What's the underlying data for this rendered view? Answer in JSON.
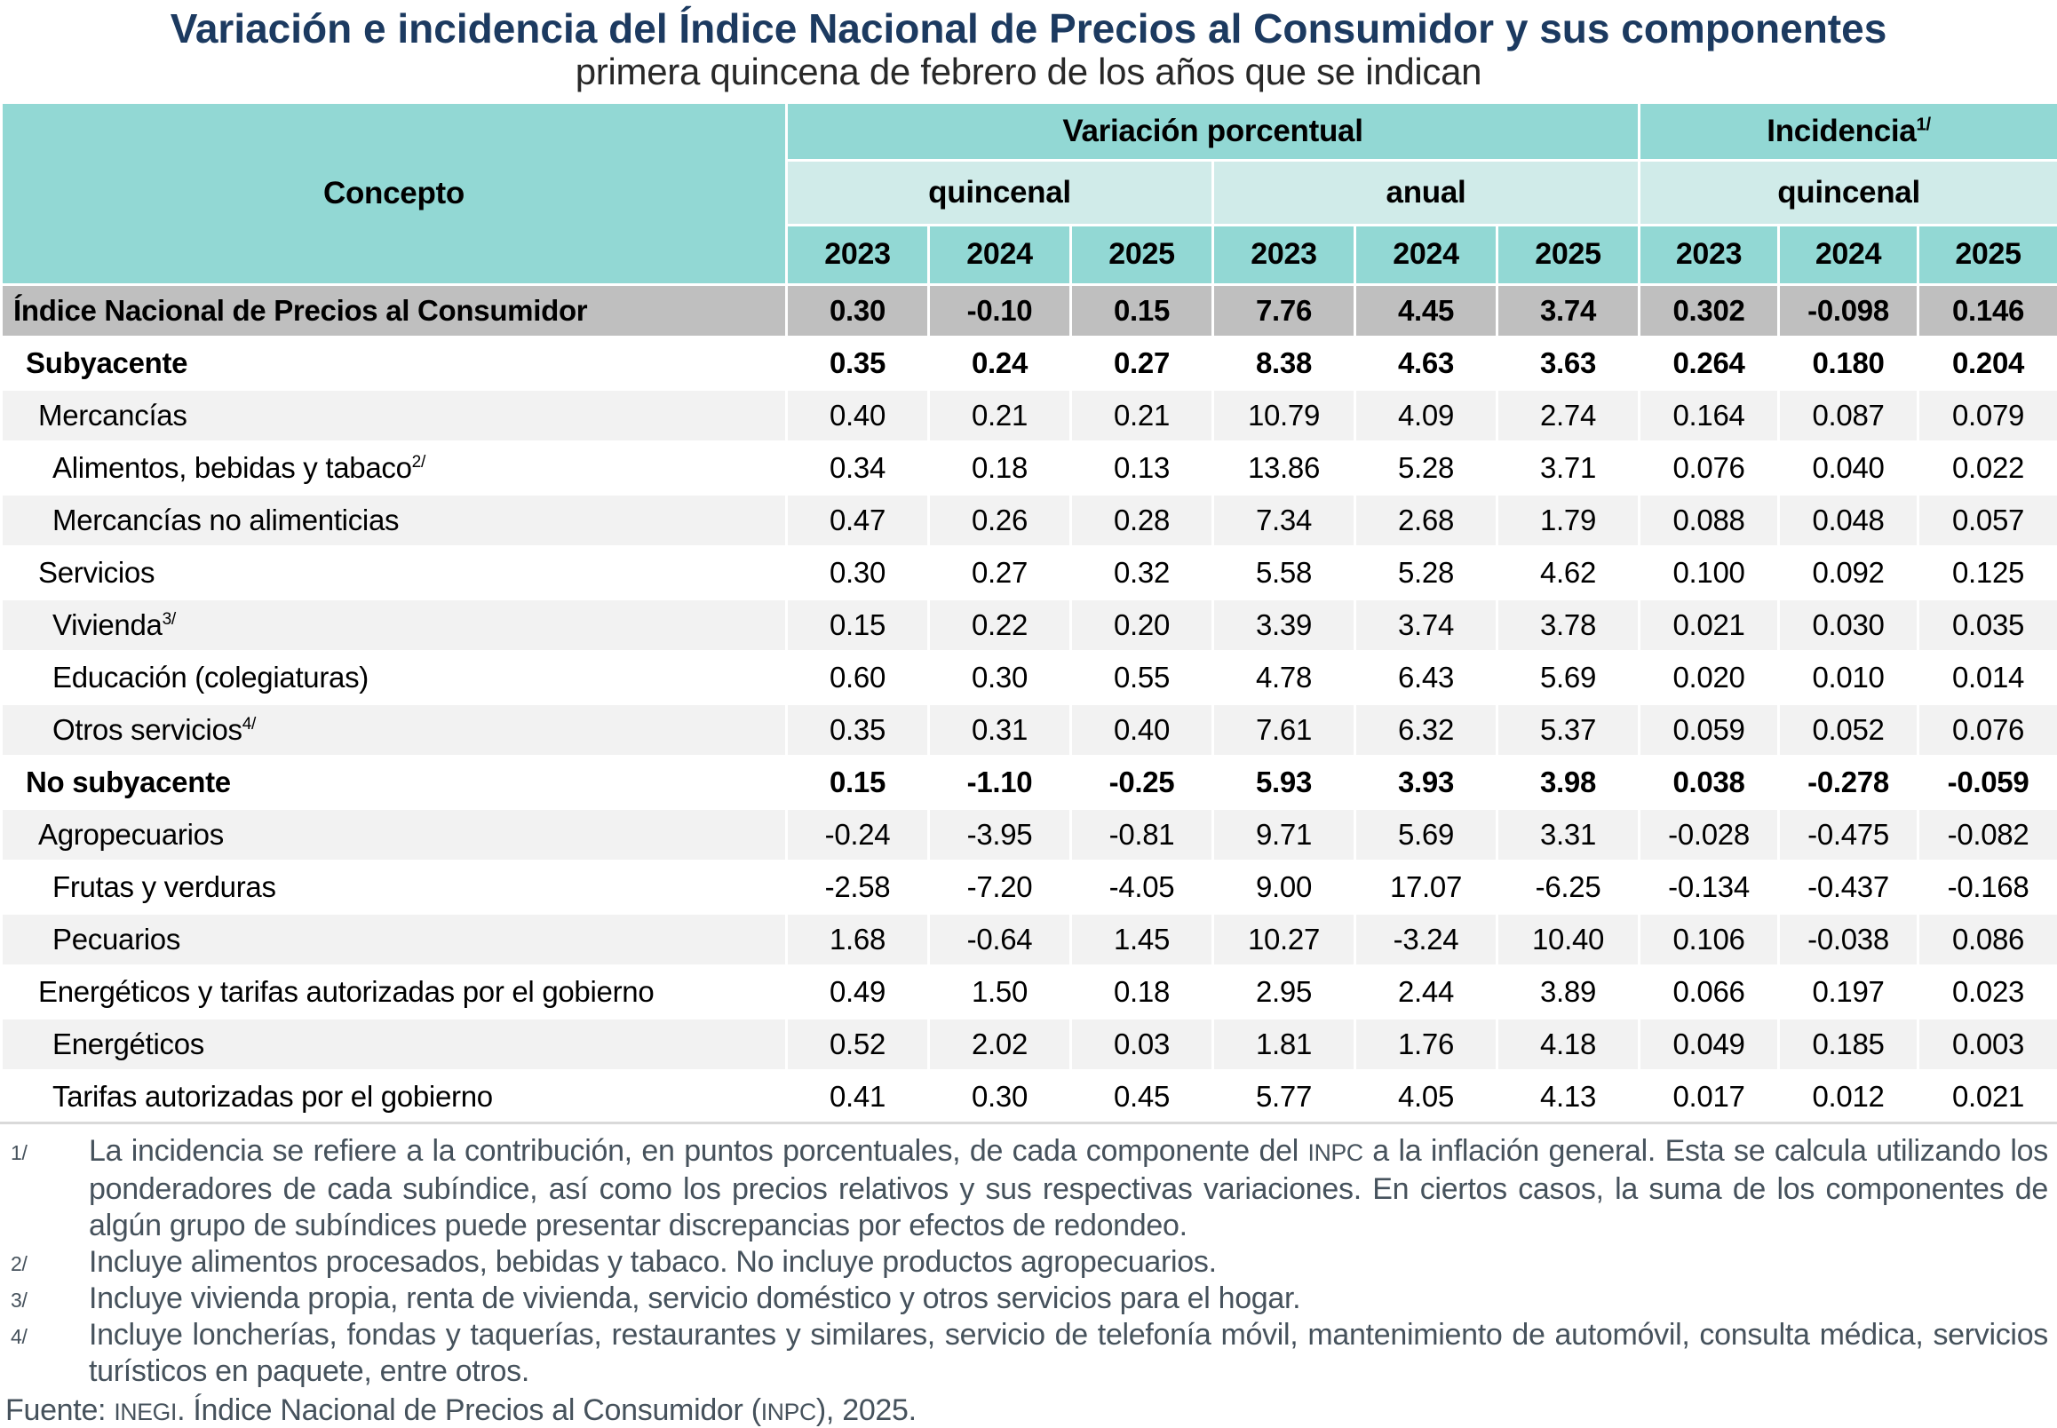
{
  "title": "Variación e incidencia del Índice Nacional de Precios al Consumidor y sus componentes",
  "subtitle": "primera quincena de febrero de los años que se indican",
  "colors": {
    "header_teal": "#92D8D4",
    "subheader_teal_light": "#D0EBE9",
    "inpc_row_gray": "#BFBFBF",
    "alt_row_gray": "#F2F2F2",
    "title_navy": "#1C3A60",
    "footnote_slate": "#46525C"
  },
  "table": {
    "concepto_label": "Concepto",
    "col_groups": [
      {
        "label": "Variación porcentual",
        "sup": ""
      },
      {
        "label": "Incidencia",
        "sup": "1/"
      }
    ],
    "sub_groups": [
      "quincenal",
      "anual",
      "quincenal"
    ],
    "years": [
      "2023",
      "2024",
      "2025",
      "2023",
      "2024",
      "2025",
      "2023",
      "2024",
      "2025"
    ],
    "rows": [
      {
        "label": "Índice Nacional de Precios al Consumidor",
        "sup": "",
        "indent": 0,
        "bold": true,
        "bg": "gray",
        "values": [
          "0.30",
          "-0.10",
          "0.15",
          "7.76",
          "4.45",
          "3.74",
          "0.302",
          "-0.098",
          "0.146"
        ]
      },
      {
        "label": "Subyacente",
        "sup": "",
        "indent": 1,
        "bold": true,
        "bg": "white",
        "values": [
          "0.35",
          "0.24",
          "0.27",
          "8.38",
          "4.63",
          "3.63",
          "0.264",
          "0.180",
          "0.204"
        ]
      },
      {
        "label": "Mercancías",
        "sup": "",
        "indent": 2,
        "bold": false,
        "bg": "alt",
        "values": [
          "0.40",
          "0.21",
          "0.21",
          "10.79",
          "4.09",
          "2.74",
          "0.164",
          "0.087",
          "0.079"
        ]
      },
      {
        "label": "Alimentos, bebidas y tabaco",
        "sup": "2/",
        "indent": 3,
        "bold": false,
        "bg": "white",
        "values": [
          "0.34",
          "0.18",
          "0.13",
          "13.86",
          "5.28",
          "3.71",
          "0.076",
          "0.040",
          "0.022"
        ]
      },
      {
        "label": "Mercancías no alimenticias",
        "sup": "",
        "indent": 3,
        "bold": false,
        "bg": "alt",
        "values": [
          "0.47",
          "0.26",
          "0.28",
          "7.34",
          "2.68",
          "1.79",
          "0.088",
          "0.048",
          "0.057"
        ]
      },
      {
        "label": "Servicios",
        "sup": "",
        "indent": 2,
        "bold": false,
        "bg": "white",
        "values": [
          "0.30",
          "0.27",
          "0.32",
          "5.58",
          "5.28",
          "4.62",
          "0.100",
          "0.092",
          "0.125"
        ]
      },
      {
        "label": "Vivienda",
        "sup": "3/",
        "indent": 3,
        "bold": false,
        "bg": "alt",
        "values": [
          "0.15",
          "0.22",
          "0.20",
          "3.39",
          "3.74",
          "3.78",
          "0.021",
          "0.030",
          "0.035"
        ]
      },
      {
        "label": "Educación (colegiaturas)",
        "sup": "",
        "indent": 3,
        "bold": false,
        "bg": "white",
        "values": [
          "0.60",
          "0.30",
          "0.55",
          "4.78",
          "6.43",
          "5.69",
          "0.020",
          "0.010",
          "0.014"
        ]
      },
      {
        "label": "Otros servicios",
        "sup": "4/",
        "indent": 3,
        "bold": false,
        "bg": "alt",
        "values": [
          "0.35",
          "0.31",
          "0.40",
          "7.61",
          "6.32",
          "5.37",
          "0.059",
          "0.052",
          "0.076"
        ]
      },
      {
        "label": "No subyacente",
        "sup": "",
        "indent": 1,
        "bold": true,
        "bg": "white",
        "values": [
          "0.15",
          "-1.10",
          "-0.25",
          "5.93",
          "3.93",
          "3.98",
          "0.038",
          "-0.278",
          "-0.059"
        ]
      },
      {
        "label": "Agropecuarios",
        "sup": "",
        "indent": 2,
        "bold": false,
        "bg": "alt",
        "values": [
          "-0.24",
          "-3.95",
          "-0.81",
          "9.71",
          "5.69",
          "3.31",
          "-0.028",
          "-0.475",
          "-0.082"
        ]
      },
      {
        "label": "Frutas y verduras",
        "sup": "",
        "indent": 3,
        "bold": false,
        "bg": "white",
        "values": [
          "-2.58",
          "-7.20",
          "-4.05",
          "9.00",
          "17.07",
          "-6.25",
          "-0.134",
          "-0.437",
          "-0.168"
        ]
      },
      {
        "label": "Pecuarios",
        "sup": "",
        "indent": 3,
        "bold": false,
        "bg": "alt",
        "values": [
          "1.68",
          "-0.64",
          "1.45",
          "10.27",
          "-3.24",
          "10.40",
          "0.106",
          "-0.038",
          "0.086"
        ]
      },
      {
        "label": "Energéticos y tarifas autorizadas por el gobierno",
        "sup": "",
        "indent": 2,
        "bold": false,
        "bg": "white",
        "values": [
          "0.49",
          "1.50",
          "0.18",
          "2.95",
          "2.44",
          "3.89",
          "0.066",
          "0.197",
          "0.023"
        ]
      },
      {
        "label": "Energéticos",
        "sup": "",
        "indent": 3,
        "bold": false,
        "bg": "alt",
        "values": [
          "0.52",
          "2.02",
          "0.03",
          "1.81",
          "1.76",
          "4.18",
          "0.049",
          "0.185",
          "0.003"
        ]
      },
      {
        "label": "Tarifas autorizadas por el gobierno",
        "sup": "",
        "indent": 3,
        "bold": false,
        "bg": "white",
        "values": [
          "0.41",
          "0.30",
          "0.45",
          "5.77",
          "4.05",
          "4.13",
          "0.017",
          "0.012",
          "0.021"
        ]
      }
    ]
  },
  "footnotes": [
    {
      "marker": "1/",
      "sc_parts": [
        1
      ],
      "parts": [
        "La incidencia se refiere a la contribución, en puntos porcentuales, de cada componente del ",
        "INPC",
        " a la inflación general. Esta se calcula utilizando los ponderadores de cada subíndice, así como los precios relativos y sus respectivas variaciones. En ciertos casos, la suma de los componentes de algún grupo de subíndices puede presentar discrepancias por efectos de redondeo."
      ]
    },
    {
      "marker": "2/",
      "sc_parts": [],
      "parts": [
        "Incluye alimentos procesados, bebidas y tabaco. No incluye productos agropecuarios."
      ]
    },
    {
      "marker": "3/",
      "sc_parts": [],
      "parts": [
        "Incluye vivienda propia, renta de vivienda, servicio doméstico y otros servicios para el hogar."
      ]
    },
    {
      "marker": "4/",
      "sc_parts": [],
      "parts": [
        "Incluye loncherías, fondas y taquerías, restaurantes y similares, servicio de telefonía móvil, mantenimiento de automóvil, consulta médica, servicios turísticos en paquete, entre otros."
      ]
    }
  ],
  "source": {
    "sc_parts": [
      1,
      3
    ],
    "parts": [
      "Fuente: ",
      "INEGI",
      ". Índice Nacional de Precios al Consumidor (",
      "INPC",
      "), 2025."
    ]
  }
}
